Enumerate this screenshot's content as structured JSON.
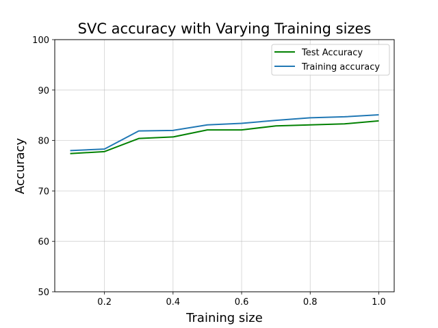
{
  "chart_data": {
    "type": "line",
    "title": "SVC accuracy with Varying Training sizes",
    "xlabel": "Training size",
    "ylabel": "Accuracy",
    "xlim": [
      0.055,
      1.045
    ],
    "ylim": [
      50,
      100
    ],
    "x_ticks": [
      0.2,
      0.4,
      0.6,
      0.8,
      1.0
    ],
    "x_tick_labels": [
      "0.2",
      "0.4",
      "0.6",
      "0.8",
      "1.0"
    ],
    "y_ticks": [
      50,
      60,
      70,
      80,
      90,
      100
    ],
    "y_tick_labels": [
      "50",
      "60",
      "70",
      "80",
      "90",
      "100"
    ],
    "grid": true,
    "legend_position": "top-right",
    "x": [
      0.1,
      0.2,
      0.3,
      0.4,
      0.5,
      0.6,
      0.7,
      0.8,
      0.9,
      1.0
    ],
    "series": [
      {
        "name": "Test Accuracy",
        "color": "#008000",
        "values": [
          77.4,
          77.8,
          80.4,
          80.7,
          82.1,
          82.1,
          82.9,
          83.1,
          83.3,
          83.9
        ]
      },
      {
        "name": "Training accuracy",
        "color": "#1f77b4",
        "values": [
          78.0,
          78.3,
          81.9,
          82.0,
          83.1,
          83.4,
          84.0,
          84.5,
          84.7,
          85.1
        ]
      }
    ]
  }
}
